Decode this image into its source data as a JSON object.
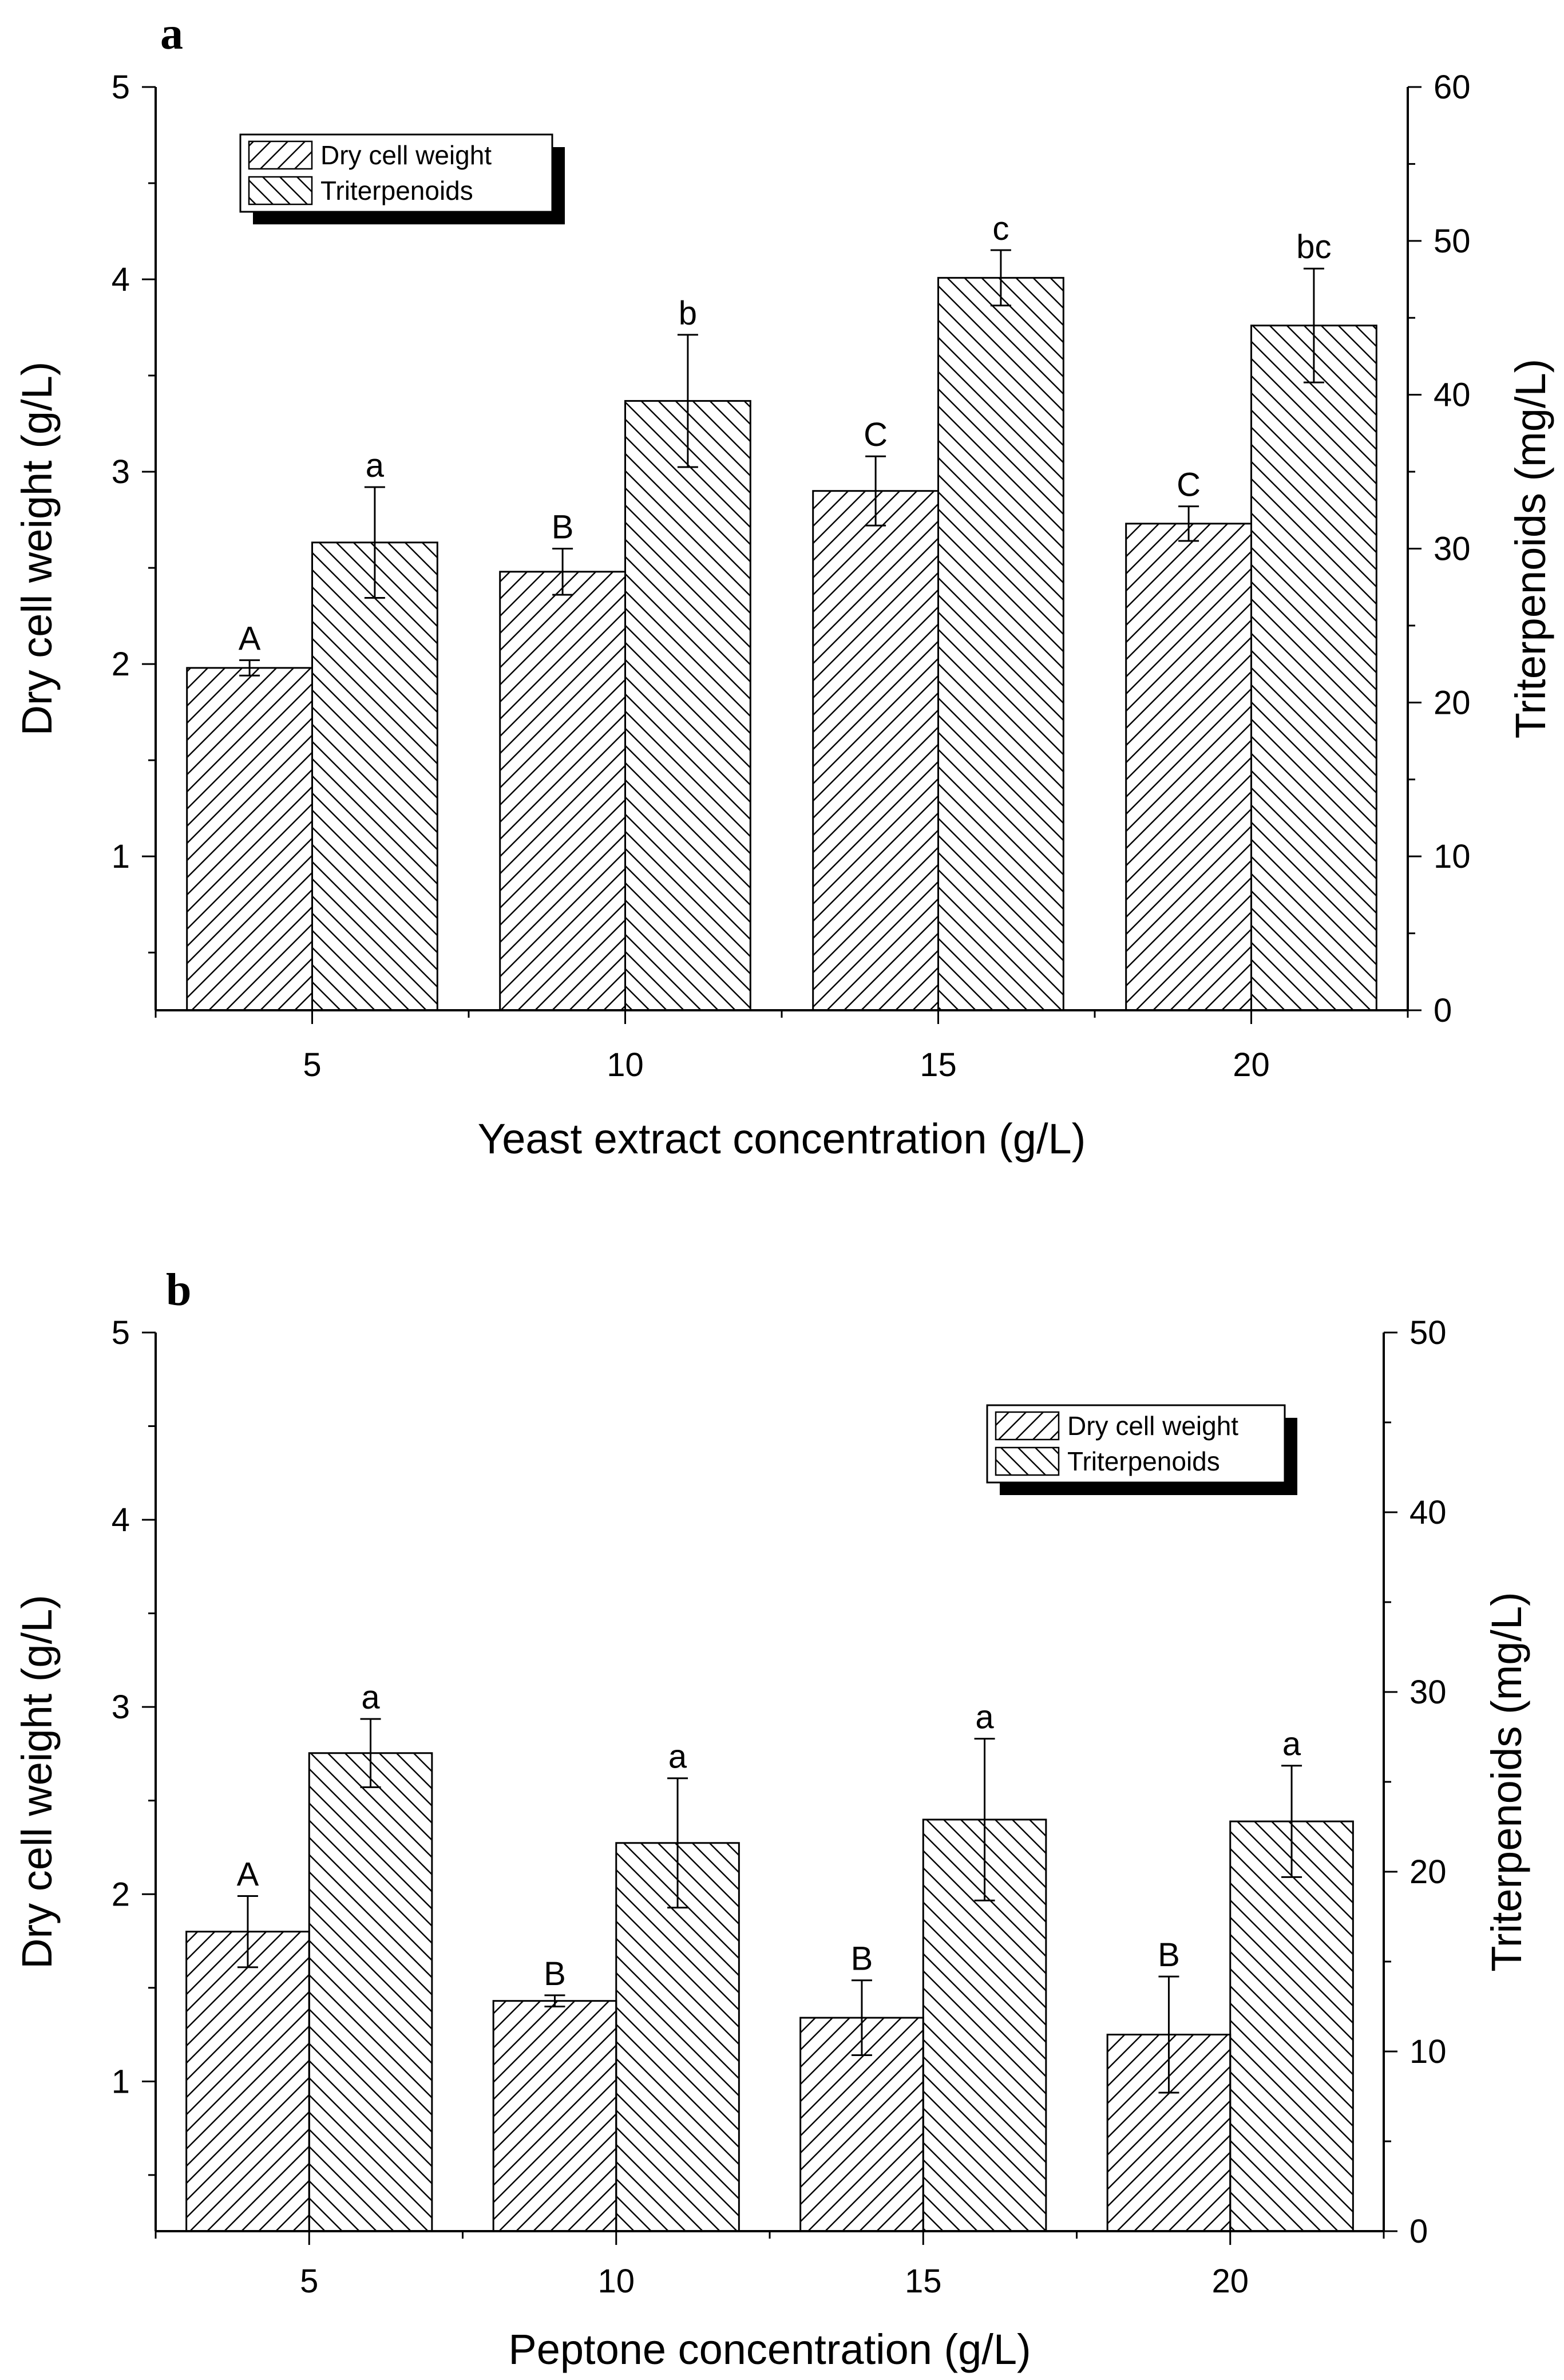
{
  "chart_data": [
    {
      "type": "bar",
      "panel_label": "a",
      "categories": [
        "5",
        "10",
        "15",
        "20"
      ],
      "xlabel": "Yeast extract concentration (g/L)",
      "ylabel": "Dry cell weight (g/L)",
      "y2label": "Triterpenoids (mg/L)",
      "ylim": [
        0.2,
        5
      ],
      "y2lim": [
        0,
        60
      ],
      "yticks": [
        "1",
        "2",
        "3",
        "4",
        "5"
      ],
      "y2ticks": [
        "0",
        "10",
        "20",
        "30",
        "40",
        "50",
        "60"
      ],
      "legend_position": "top-left",
      "series": [
        {
          "name": "Dry cell weight",
          "axis": "left",
          "pattern": "hatch-forward",
          "values": [
            1.98,
            2.48,
            2.9,
            2.73
          ],
          "errors": [
            0.04,
            0.12,
            0.18,
            0.09
          ],
          "labels": [
            "A",
            "B",
            "C",
            "C"
          ]
        },
        {
          "name": "Triterpenoids",
          "axis": "right",
          "pattern": "hatch-back",
          "values": [
            30.4,
            39.6,
            47.6,
            44.5
          ],
          "errors": [
            3.6,
            4.3,
            1.8,
            3.7
          ],
          "labels": [
            "a",
            "b",
            "c",
            "bc"
          ]
        }
      ]
    },
    {
      "type": "bar",
      "panel_label": "b",
      "categories": [
        "5",
        "10",
        "15",
        "20"
      ],
      "xlabel": "Peptone concentration (g/L)",
      "ylabel": "Dry cell weight (g/L)",
      "y2label": "Triterpenoids (mg/L)",
      "ylim": [
        0.2,
        5
      ],
      "y2lim": [
        0,
        50
      ],
      "yticks": [
        "1",
        "2",
        "3",
        "4",
        "5"
      ],
      "y2ticks": [
        "0",
        "10",
        "20",
        "30",
        "40",
        "50"
      ],
      "legend_position": "top-right",
      "series": [
        {
          "name": "Dry cell weight",
          "axis": "left",
          "pattern": "hatch-forward",
          "values": [
            1.8,
            1.43,
            1.34,
            1.25
          ],
          "errors": [
            0.19,
            0.03,
            0.2,
            0.31
          ],
          "labels": [
            "A",
            "B",
            "B",
            "B"
          ]
        },
        {
          "name": "Triterpenoids",
          "axis": "right",
          "pattern": "hatch-back",
          "values": [
            26.6,
            21.6,
            22.9,
            22.8
          ],
          "errors": [
            1.9,
            3.6,
            4.5,
            3.1
          ],
          "labels": [
            "a",
            "a",
            "a",
            "a"
          ]
        }
      ]
    }
  ]
}
